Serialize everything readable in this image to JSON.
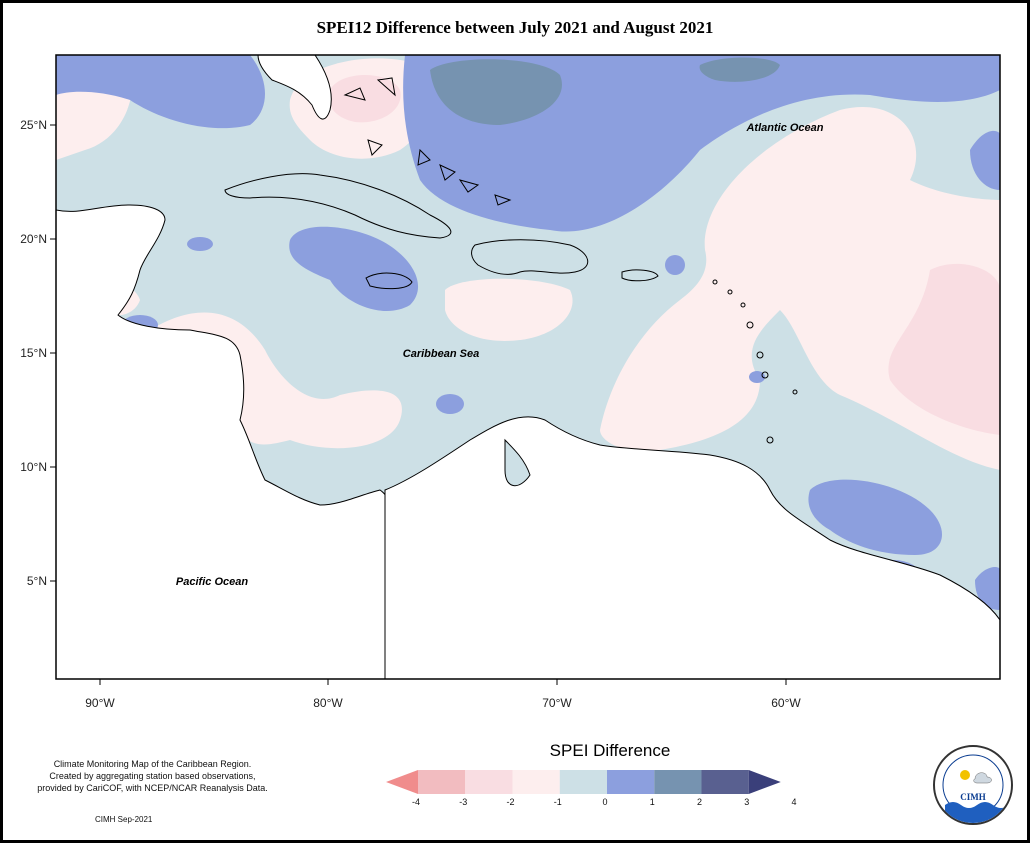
{
  "title": "SPEI12 Difference between July 2021 and August 2021",
  "axes": {
    "lat_labels": [
      "25°N",
      "20°N",
      "15°N",
      "10°N",
      "5°N"
    ],
    "lon_labels": [
      "90°W",
      "80°W",
      "70°W",
      "60°W"
    ]
  },
  "labels": {
    "atlantic": "Atlantic Ocean",
    "caribbean": "Caribbean Sea",
    "pacific": "Pacific Ocean"
  },
  "legend": {
    "title": "SPEI Difference",
    "ticks": [
      "-4",
      "-3",
      "-2",
      "-1",
      "0",
      "1",
      "2",
      "3",
      "4"
    ],
    "colors": [
      "#f08c8c",
      "#f2bcc0",
      "#f9dde2",
      "#fdeeee",
      "#cde0e6",
      "#8c9fde",
      "#7693b0",
      "#596090",
      "#3a3f7a"
    ]
  },
  "credit": {
    "line1": "Climate Monitoring Map of the Caribbean Region.",
    "line2": "Created by aggregating station based observations,",
    "line3": "provided by CariCOF, with NCEP/NCAR Reanalysis Data.",
    "date": "CIMH Sep-2021"
  },
  "logo": {
    "name": "CIMH"
  }
}
